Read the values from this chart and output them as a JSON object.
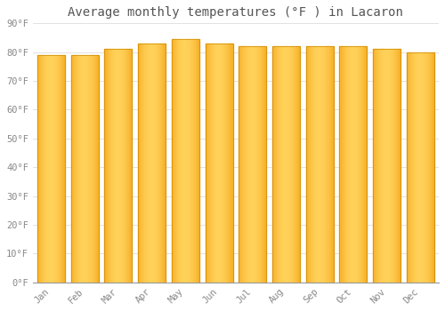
{
  "title": "Average monthly temperatures (°F ) in Lacaron",
  "months": [
    "Jan",
    "Feb",
    "Mar",
    "Apr",
    "May",
    "Jun",
    "Jul",
    "Aug",
    "Sep",
    "Oct",
    "Nov",
    "Dec"
  ],
  "values": [
    79,
    79,
    81,
    83,
    84.5,
    83,
    82,
    82,
    82,
    82,
    81,
    80
  ],
  "bar_color_light": "#FFD060",
  "bar_color_dark": "#F5A800",
  "bar_edge_color": "#CC8800",
  "background_color": "#FFFFFF",
  "grid_color": "#DDDDDD",
  "text_color": "#888888",
  "ylim": [
    0,
    90
  ],
  "yticks": [
    0,
    10,
    20,
    30,
    40,
    50,
    60,
    70,
    80,
    90
  ],
  "ytick_labels": [
    "0°F",
    "10°F",
    "20°F",
    "30°F",
    "40°F",
    "50°F",
    "60°F",
    "70°F",
    "80°F",
    "90°F"
  ],
  "title_fontsize": 10,
  "tick_fontsize": 7.5,
  "font_family": "monospace"
}
